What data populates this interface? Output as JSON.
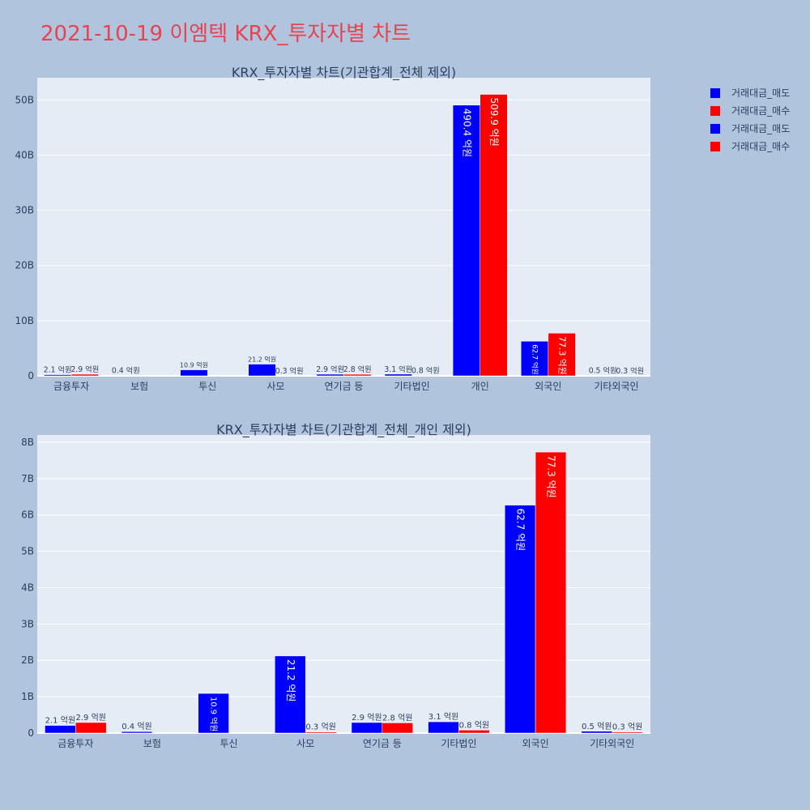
{
  "page_title": "2021-10-19 이엠텍 KRX_투자자별 차트",
  "colors": {
    "sell": "#0000ff",
    "buy": "#ff0000",
    "plot_bg": "#e5ecf6",
    "page_bg": "#b0c4de",
    "title": "#e8434f"
  },
  "legend": [
    {
      "name": "거래대금_매도",
      "color": "#0000ff"
    },
    {
      "name": "거래대금_매수",
      "color": "#ff0000"
    },
    {
      "name": "거래대금_매도",
      "color": "#0000ff"
    },
    {
      "name": "거래대금_매수",
      "color": "#ff0000"
    }
  ],
  "chart_data": [
    {
      "type": "bar",
      "title": "KRX_투자자별 차트(기관합계_전체 제외)",
      "categories": [
        "금융투자",
        "보험",
        "투신",
        "사모",
        "연기금 등",
        "기타법인",
        "개인",
        "외국인",
        "기타외국인"
      ],
      "ylim": [
        0,
        54
      ],
      "yticks": [
        0,
        10,
        20,
        30,
        40,
        50
      ],
      "ytick_labels": [
        "0",
        "10B",
        "20B",
        "30B",
        "40B",
        "50B"
      ],
      "series": [
        {
          "name": "거래대금_매도",
          "color": "#0000ff",
          "values": [
            0.21,
            0.04,
            1.09,
            2.12,
            0.29,
            0.31,
            49.04,
            6.27,
            0.05
          ],
          "labels": [
            "2.1 억원",
            "0.4 억원",
            "10.9 억원",
            "21.2 억원",
            "2.9 억원",
            "3.1 억원",
            "490.4 억원",
            "62.7 억원",
            "0.5 억원"
          ]
        },
        {
          "name": "거래대금_매수",
          "color": "#ff0000",
          "values": [
            0.29,
            0,
            0,
            0.03,
            0.28,
            0.08,
            50.99,
            7.73,
            0.03
          ],
          "labels": [
            "2.9 억원",
            "",
            "",
            "0.3 억원",
            "2.8 억원",
            "0.8 억원",
            "509.9 억원",
            "77.3 억원",
            "0.3 억원"
          ]
        }
      ]
    },
    {
      "type": "bar",
      "title": "KRX_투자자별 차트(기관합계_전체_개인 제외)",
      "categories": [
        "금융투자",
        "보험",
        "투신",
        "사모",
        "연기금 등",
        "기타법인",
        "외국인",
        "기타외국인"
      ],
      "ylim": [
        0,
        8.2
      ],
      "yticks": [
        0,
        1,
        2,
        3,
        4,
        5,
        6,
        7,
        8
      ],
      "ytick_labels": [
        "0",
        "1B",
        "2B",
        "3B",
        "4B",
        "5B",
        "6B",
        "7B",
        "8B"
      ],
      "series": [
        {
          "name": "거래대금_매도",
          "color": "#0000ff",
          "values": [
            0.21,
            0.04,
            1.09,
            2.12,
            0.29,
            0.31,
            6.27,
            0.05
          ],
          "labels": [
            "2.1 억원",
            "0.4 억원",
            "10.9 억원",
            "21.2 억원",
            "2.9 억원",
            "3.1 억원",
            "62.7 억원",
            "0.5 억원"
          ]
        },
        {
          "name": "거래대금_매수",
          "color": "#ff0000",
          "values": [
            0.29,
            0,
            0,
            0.03,
            0.28,
            0.08,
            7.73,
            0.03
          ],
          "labels": [
            "2.9 억원",
            "",
            "",
            "0.3 억원",
            "2.8 억원",
            "0.8 억원",
            "77.3 억원",
            "0.3 억원"
          ]
        }
      ]
    }
  ]
}
